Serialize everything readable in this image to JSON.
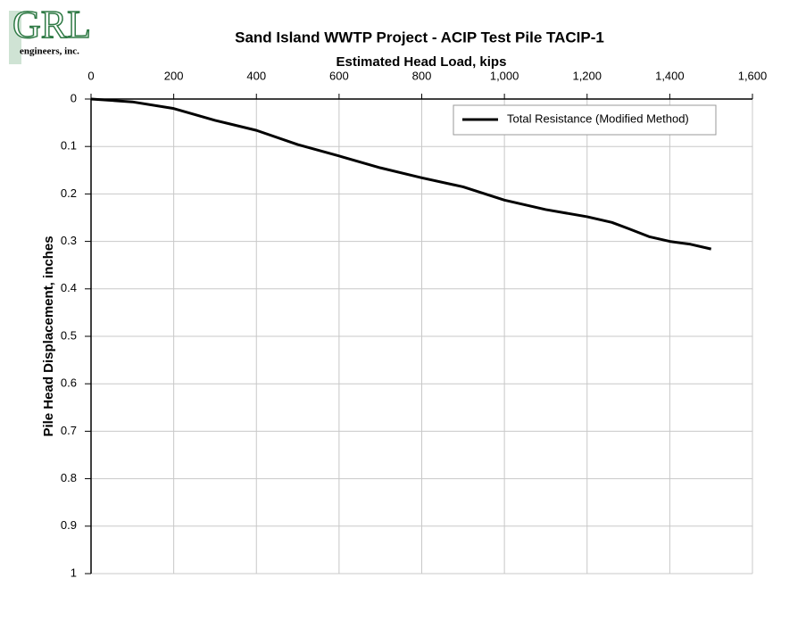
{
  "logo": {
    "text": "GRL",
    "subtitle": "engineers, inc."
  },
  "chart_data": {
    "type": "line",
    "title": "Sand Island WWTP Project - ACIP Test Pile TACIP-1",
    "x_label": "Estimated Head Load, kips",
    "y_label": "Pile Head Displacement, inches",
    "x": [
      0,
      100,
      200,
      300,
      400,
      500,
      600,
      700,
      800,
      900,
      1000,
      1100,
      1200,
      1260,
      1300,
      1350,
      1400,
      1450,
      1500
    ],
    "series": [
      {
        "name": "Total Resistance (Modified Method)",
        "color": "#000000",
        "values": [
          0,
          0.006,
          0.02,
          0.045,
          0.066,
          0.096,
          0.12,
          0.145,
          0.166,
          0.185,
          0.213,
          0.233,
          0.248,
          0.26,
          0.273,
          0.29,
          0.3,
          0.306,
          0.316
        ]
      }
    ],
    "xlim": [
      0,
      1600
    ],
    "xticks": [
      0,
      200,
      400,
      600,
      800,
      {
        "value": 1000,
        "label": "1,000"
      },
      {
        "value": 1200,
        "label": "1,200"
      },
      {
        "value": 1400,
        "label": "1,400"
      },
      {
        "value": 1600,
        "label": "1,600"
      }
    ],
    "ylim": [
      0,
      1
    ],
    "yticks": [
      0,
      0.1,
      0.2,
      0.3,
      0.4,
      0.5,
      0.6,
      0.7,
      0.8,
      0.9,
      1
    ],
    "y_inverted": true,
    "x_axis_position": "top",
    "grid": true,
    "legend": "top-right"
  }
}
